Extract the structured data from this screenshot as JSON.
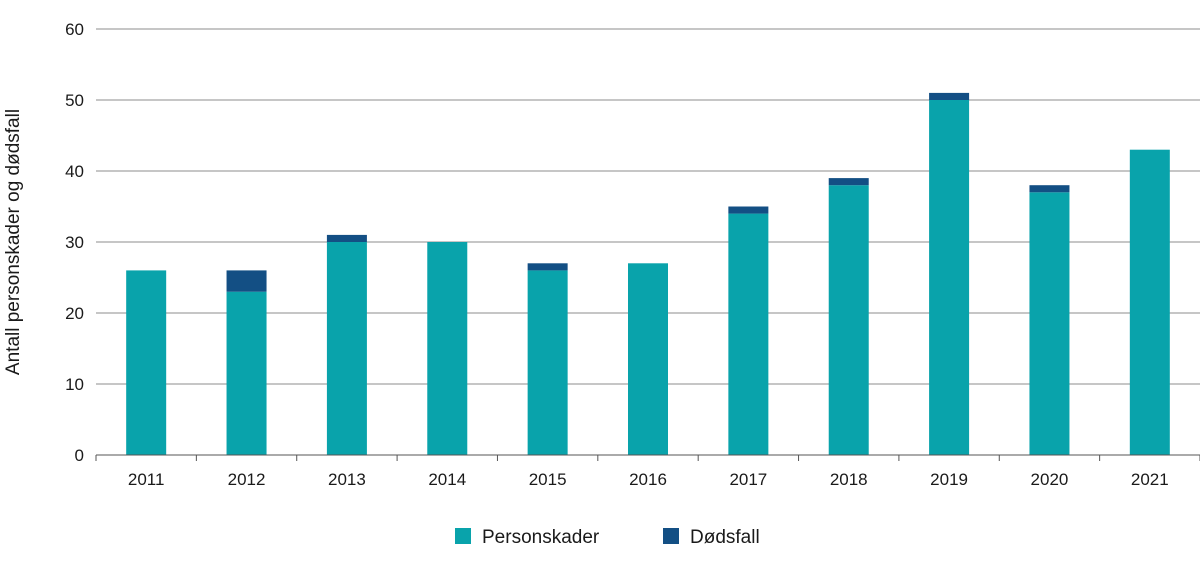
{
  "chart_data": {
    "type": "bar",
    "stacked": true,
    "title": "",
    "xlabel": "",
    "ylabel": "Antall personskader og dødsfall",
    "ylim": [
      0,
      60
    ],
    "yticks": [
      0,
      10,
      20,
      30,
      40,
      50,
      60
    ],
    "grid": true,
    "legend_position": "bottom-center",
    "categories": [
      "2011",
      "2012",
      "2013",
      "2014",
      "2015",
      "2016",
      "2017",
      "2018",
      "2019",
      "2020",
      "2021"
    ],
    "series": [
      {
        "name": "Personskader",
        "color": "#09a3ab",
        "values": [
          26,
          23,
          30,
          30,
          26,
          27,
          34,
          38,
          50,
          37,
          43
        ]
      },
      {
        "name": "Dødsfall",
        "color": "#134f84",
        "values": [
          0,
          3,
          1,
          0,
          1,
          0,
          1,
          1,
          1,
          1,
          0
        ]
      }
    ]
  }
}
